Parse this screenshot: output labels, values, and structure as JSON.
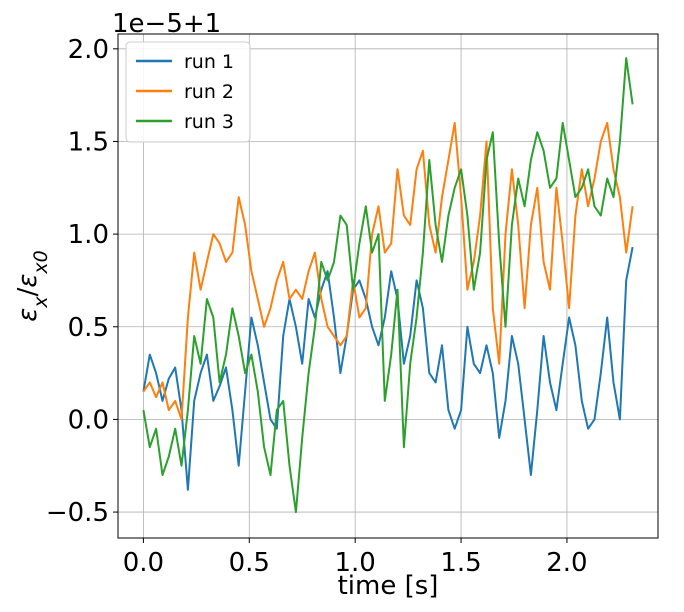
{
  "chart_data": {
    "type": "line",
    "title": "",
    "xlabel": "time [s]",
    "ylabel": "εx/εx0",
    "offset_text": "1e−5+1",
    "xlim": [
      -0.12,
      2.43
    ],
    "ylim": [
      -0.64,
      2.08
    ],
    "xticks": [
      0.0,
      0.5,
      1.0,
      1.5,
      2.0
    ],
    "xtick_labels": [
      "0.0",
      "0.5",
      "1.0",
      "1.5",
      "2.0"
    ],
    "yticks": [
      -0.5,
      0.0,
      0.5,
      1.0,
      1.5,
      2.0
    ],
    "ytick_labels": [
      "−0.5",
      "0.0",
      "0.5",
      "1.0",
      "1.5",
      "2.0"
    ],
    "grid": true,
    "legend_position": "top-left",
    "series": [
      {
        "name": "run 1",
        "color": "#1f77b4",
        "x": [
          0.0,
          0.03,
          0.06,
          0.09,
          0.12,
          0.15,
          0.18,
          0.21,
          0.24,
          0.27,
          0.3,
          0.33,
          0.36,
          0.39,
          0.42,
          0.45,
          0.48,
          0.51,
          0.54,
          0.57,
          0.6,
          0.63,
          0.66,
          0.69,
          0.72,
          0.75,
          0.78,
          0.81,
          0.84,
          0.87,
          0.9,
          0.93,
          0.96,
          0.99,
          1.02,
          1.05,
          1.08,
          1.11,
          1.14,
          1.17,
          1.2,
          1.23,
          1.26,
          1.29,
          1.32,
          1.35,
          1.38,
          1.41,
          1.44,
          1.47,
          1.5,
          1.53,
          1.56,
          1.59,
          1.62,
          1.65,
          1.68,
          1.71,
          1.74,
          1.77,
          1.8,
          1.83,
          1.86,
          1.89,
          1.92,
          1.95,
          1.98,
          2.01,
          2.04,
          2.07,
          2.1,
          2.13,
          2.16,
          2.19,
          2.22,
          2.25,
          2.28,
          2.31
        ],
        "values": [
          0.15,
          0.35,
          0.25,
          0.1,
          0.22,
          0.28,
          0.05,
          -0.38,
          0.1,
          0.25,
          0.35,
          0.1,
          0.18,
          0.28,
          0.05,
          -0.25,
          0.15,
          0.55,
          0.4,
          0.2,
          0.0,
          -0.05,
          0.45,
          0.65,
          0.5,
          0.3,
          0.65,
          0.55,
          0.7,
          0.8,
          0.55,
          0.25,
          0.45,
          0.7,
          0.75,
          0.65,
          0.5,
          0.4,
          0.55,
          0.8,
          0.65,
          0.3,
          0.45,
          0.75,
          0.6,
          0.25,
          0.2,
          0.4,
          0.05,
          -0.05,
          0.05,
          0.5,
          0.3,
          0.25,
          0.4,
          0.25,
          -0.1,
          0.1,
          0.45,
          0.3,
          0.0,
          -0.3,
          0.05,
          0.45,
          0.2,
          0.05,
          0.3,
          0.55,
          0.4,
          0.1,
          -0.05,
          0.0,
          0.25,
          0.55,
          0.2,
          0.0,
          0.75,
          0.93
        ]
      },
      {
        "name": "run 2",
        "color": "#ff7f0e",
        "x": [
          0.0,
          0.03,
          0.06,
          0.09,
          0.12,
          0.15,
          0.18,
          0.21,
          0.24,
          0.27,
          0.3,
          0.33,
          0.36,
          0.39,
          0.42,
          0.45,
          0.48,
          0.51,
          0.54,
          0.57,
          0.6,
          0.63,
          0.66,
          0.69,
          0.72,
          0.75,
          0.78,
          0.81,
          0.84,
          0.87,
          0.9,
          0.93,
          0.96,
          0.99,
          1.02,
          1.05,
          1.08,
          1.11,
          1.14,
          1.17,
          1.2,
          1.23,
          1.26,
          1.29,
          1.32,
          1.35,
          1.38,
          1.41,
          1.44,
          1.47,
          1.5,
          1.53,
          1.56,
          1.59,
          1.62,
          1.65,
          1.68,
          1.71,
          1.74,
          1.77,
          1.8,
          1.83,
          1.86,
          1.89,
          1.92,
          1.95,
          1.98,
          2.01,
          2.04,
          2.07,
          2.1,
          2.13,
          2.16,
          2.19,
          2.22,
          2.25,
          2.28,
          2.31
        ],
        "values": [
          0.15,
          0.2,
          0.12,
          0.2,
          0.05,
          0.1,
          0.0,
          0.55,
          0.9,
          0.7,
          0.85,
          1.0,
          0.95,
          0.85,
          0.9,
          1.2,
          1.05,
          0.8,
          0.65,
          0.5,
          0.6,
          0.75,
          0.85,
          0.65,
          0.7,
          0.65,
          0.8,
          0.9,
          0.65,
          0.5,
          0.45,
          0.4,
          0.45,
          0.75,
          0.55,
          0.6,
          1.0,
          1.15,
          0.9,
          0.95,
          1.35,
          1.1,
          1.05,
          1.35,
          1.45,
          1.05,
          0.9,
          1.2,
          1.4,
          1.6,
          1.2,
          0.7,
          0.85,
          1.1,
          1.5,
          0.6,
          0.3,
          1.0,
          1.35,
          1.05,
          0.6,
          1.05,
          1.25,
          0.85,
          0.7,
          1.25,
          0.95,
          0.6,
          1.1,
          1.35,
          1.15,
          1.3,
          1.5,
          1.6,
          1.35,
          1.2,
          0.9,
          1.15
        ]
      },
      {
        "name": "run 3",
        "color": "#2ca02c",
        "x": [
          0.0,
          0.03,
          0.06,
          0.09,
          0.12,
          0.15,
          0.18,
          0.21,
          0.24,
          0.27,
          0.3,
          0.33,
          0.36,
          0.39,
          0.42,
          0.45,
          0.48,
          0.51,
          0.54,
          0.57,
          0.6,
          0.63,
          0.66,
          0.69,
          0.72,
          0.75,
          0.78,
          0.81,
          0.84,
          0.87,
          0.9,
          0.93,
          0.96,
          0.99,
          1.02,
          1.05,
          1.08,
          1.11,
          1.14,
          1.17,
          1.2,
          1.23,
          1.26,
          1.29,
          1.32,
          1.35,
          1.38,
          1.41,
          1.44,
          1.47,
          1.5,
          1.53,
          1.56,
          1.59,
          1.62,
          1.65,
          1.68,
          1.71,
          1.74,
          1.77,
          1.8,
          1.83,
          1.86,
          1.89,
          1.92,
          1.95,
          1.98,
          2.01,
          2.04,
          2.07,
          2.1,
          2.13,
          2.16,
          2.19,
          2.22,
          2.25,
          2.28,
          2.31
        ],
        "values": [
          0.05,
          -0.15,
          -0.05,
          -0.3,
          -0.2,
          -0.05,
          -0.25,
          0.05,
          0.45,
          0.3,
          0.65,
          0.55,
          0.2,
          0.35,
          0.6,
          0.45,
          0.25,
          0.35,
          0.15,
          -0.15,
          -0.3,
          0.05,
          0.1,
          -0.25,
          -0.5,
          -0.1,
          0.25,
          0.5,
          0.85,
          0.75,
          0.85,
          1.1,
          1.05,
          0.7,
          0.95,
          1.15,
          0.9,
          1.0,
          0.1,
          0.35,
          0.7,
          -0.15,
          0.3,
          0.55,
          0.9,
          1.4,
          1.05,
          0.85,
          1.1,
          1.25,
          1.35,
          1.1,
          0.7,
          0.9,
          1.4,
          1.55,
          0.95,
          0.5,
          1.05,
          1.3,
          1.15,
          1.4,
          1.55,
          1.45,
          1.25,
          1.3,
          1.6,
          1.4,
          1.2,
          1.25,
          1.35,
          1.15,
          1.1,
          1.3,
          1.2,
          1.5,
          1.95,
          1.7
        ]
      }
    ]
  }
}
